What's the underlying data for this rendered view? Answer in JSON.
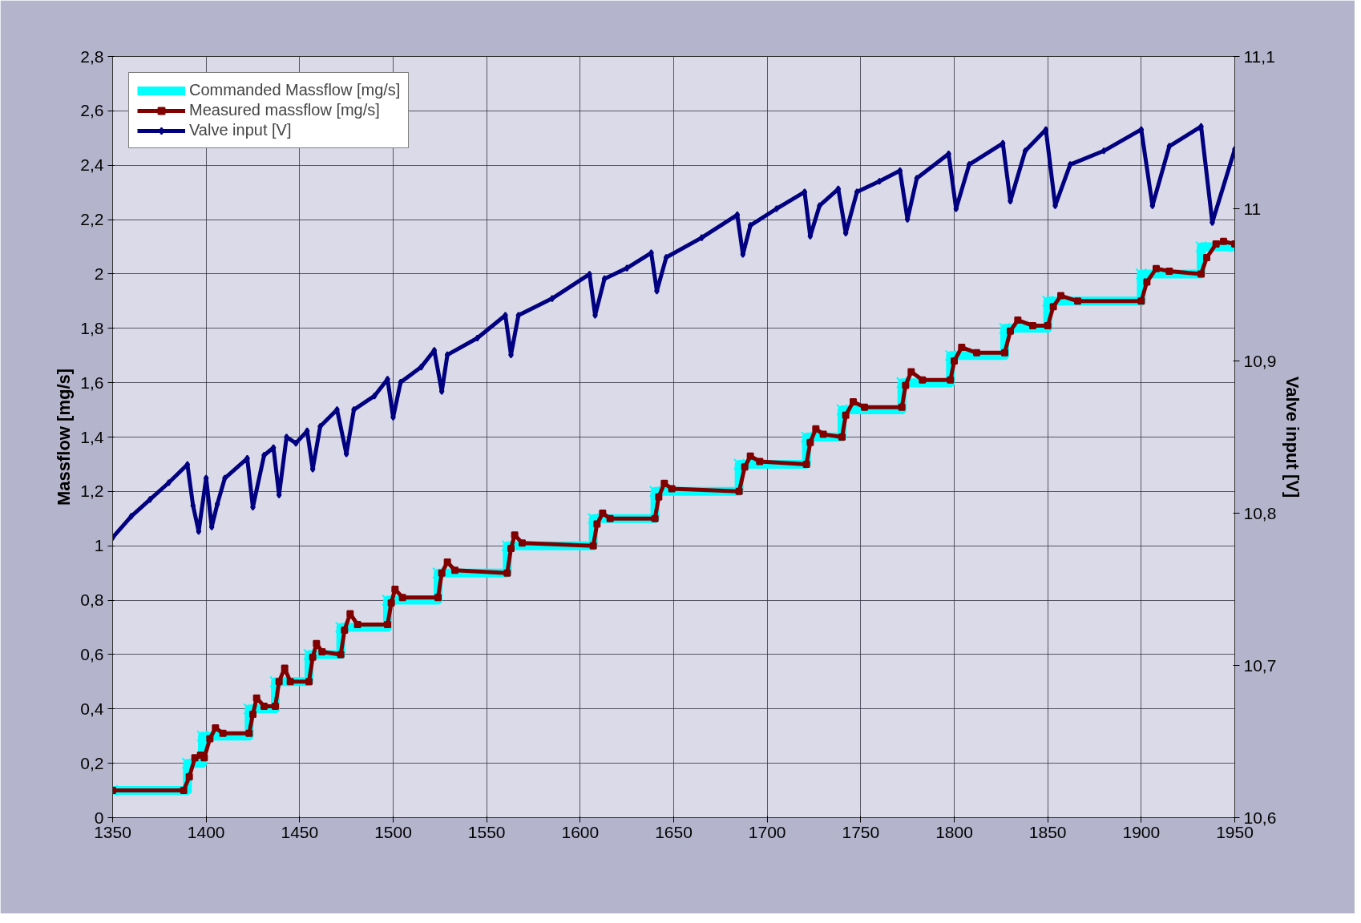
{
  "chart_data": {
    "type": "line",
    "xlabel": null,
    "ylabel": "Massflow [mg/s]",
    "y2label": "Valve input [V]",
    "xlim": [
      1350,
      1950
    ],
    "xticks": [
      1350,
      1400,
      1450,
      1500,
      1550,
      1600,
      1650,
      1700,
      1750,
      1800,
      1850,
      1900,
      1950
    ],
    "ylim": [
      0,
      2.8
    ],
    "yticks": [
      0,
      {
        "value": 0.2,
        "label": "0,2"
      },
      {
        "value": 0.4,
        "label": "0,4"
      },
      {
        "value": 0.6,
        "label": "0,6"
      },
      {
        "value": 0.8,
        "label": "0,8"
      },
      1,
      {
        "value": 1.2,
        "label": "1,2"
      },
      {
        "value": 1.4,
        "label": "1,4"
      },
      {
        "value": 1.6,
        "label": "1,6"
      },
      {
        "value": 1.8,
        "label": "1,8"
      },
      2,
      {
        "value": 2.2,
        "label": "2,2"
      },
      {
        "value": 2.4,
        "label": "2,4"
      },
      {
        "value": 2.6,
        "label": "2,6"
      },
      {
        "value": 2.8,
        "label": "2,8"
      }
    ],
    "y2lim": [
      10.6,
      11.1
    ],
    "y2ticks": [
      {
        "value": 10.6,
        "label": "10,6"
      },
      {
        "value": 10.7,
        "label": "10,7"
      },
      {
        "value": 10.8,
        "label": "10,8"
      },
      {
        "value": 10.9,
        "label": "10,9"
      },
      11,
      {
        "value": 11.1,
        "label": "11,1"
      }
    ],
    "grid": true,
    "legend": "top left",
    "series": [
      {
        "name": "Commanded Massflow [mg/s]",
        "type": "step",
        "color": "#00ffff",
        "marker": "cross",
        "x": [
          1350,
          1390,
          1398,
          1423,
          1437,
          1455,
          1472,
          1497,
          1524,
          1561,
          1607,
          1640,
          1685,
          1721,
          1740,
          1772,
          1798,
          1827,
          1850,
          1900,
          1932,
          1950
        ],
        "values": [
          0.1,
          0.2,
          0.3,
          0.4,
          0.5,
          0.6,
          0.7,
          0.8,
          0.9,
          1.0,
          1.1,
          1.2,
          1.3,
          1.4,
          1.5,
          1.6,
          1.7,
          1.8,
          1.9,
          2.0,
          2.1,
          2.1
        ]
      },
      {
        "name": "Measured massflow [mg/s]",
        "color": "#800000",
        "marker": "square",
        "x": [
          1350,
          1388,
          1391,
          1394,
          1397,
          1399,
          1402,
          1405,
          1409,
          1423,
          1425,
          1427,
          1431,
          1437,
          1439,
          1442,
          1445,
          1455,
          1457,
          1459,
          1462,
          1472,
          1474,
          1477,
          1481,
          1497,
          1499,
          1501,
          1505,
          1524,
          1526,
          1529,
          1533,
          1561,
          1563,
          1565,
          1569,
          1607,
          1609,
          1612,
          1616,
          1640,
          1642,
          1645,
          1649,
          1685,
          1688,
          1691,
          1696,
          1721,
          1723,
          1726,
          1730,
          1740,
          1742,
          1746,
          1752,
          1772,
          1774,
          1777,
          1783,
          1798,
          1800,
          1804,
          1812,
          1827,
          1830,
          1834,
          1842,
          1850,
          1853,
          1857,
          1866,
          1900,
          1903,
          1908,
          1915,
          1932,
          1935,
          1940,
          1944,
          1950
        ],
        "values": [
          0.1,
          0.1,
          0.15,
          0.22,
          0.23,
          0.22,
          0.29,
          0.33,
          0.31,
          0.31,
          0.38,
          0.44,
          0.41,
          0.41,
          0.5,
          0.55,
          0.5,
          0.5,
          0.59,
          0.64,
          0.61,
          0.6,
          0.69,
          0.75,
          0.71,
          0.71,
          0.79,
          0.84,
          0.81,
          0.81,
          0.9,
          0.94,
          0.91,
          0.9,
          0.99,
          1.04,
          1.01,
          1.0,
          1.08,
          1.12,
          1.1,
          1.1,
          1.18,
          1.23,
          1.21,
          1.2,
          1.29,
          1.33,
          1.31,
          1.3,
          1.38,
          1.43,
          1.41,
          1.4,
          1.48,
          1.53,
          1.51,
          1.51,
          1.59,
          1.64,
          1.61,
          1.61,
          1.68,
          1.73,
          1.71,
          1.71,
          1.79,
          1.83,
          1.81,
          1.81,
          1.88,
          1.92,
          1.9,
          1.9,
          1.97,
          2.02,
          2.01,
          2.0,
          2.06,
          2.11,
          2.12,
          2.11
        ]
      },
      {
        "name": "Valve input [V]",
        "color": "#000080",
        "marker": "diamond",
        "axis": "y2",
        "x": [
          1350,
          1360,
          1370,
          1380,
          1390,
          1393,
          1396,
          1400,
          1403,
          1406,
          1410,
          1422,
          1425,
          1431,
          1436,
          1439,
          1443,
          1448,
          1454,
          1457,
          1461,
          1470,
          1475,
          1479,
          1490,
          1497,
          1500,
          1504,
          1515,
          1522,
          1526,
          1529,
          1545,
          1560,
          1563,
          1567,
          1585,
          1605,
          1608,
          1613,
          1625,
          1638,
          1641,
          1646,
          1665,
          1684,
          1687,
          1691,
          1705,
          1720,
          1723,
          1728,
          1738,
          1742,
          1748,
          1760,
          1771,
          1775,
          1780,
          1797,
          1801,
          1808,
          1826,
          1830,
          1838,
          1849,
          1854,
          1862,
          1880,
          1900,
          1906,
          1915,
          1932,
          1938,
          1950
        ],
        "values": [
          10.784,
          10.798,
          10.809,
          10.82,
          10.832,
          10.805,
          10.788,
          10.823,
          10.791,
          10.806,
          10.823,
          10.836,
          10.804,
          10.838,
          10.843,
          10.812,
          10.85,
          10.846,
          10.854,
          10.829,
          10.857,
          10.868,
          10.839,
          10.868,
          10.877,
          10.888,
          10.863,
          10.886,
          10.896,
          10.907,
          10.88,
          10.904,
          10.915,
          10.93,
          10.904,
          10.93,
          10.941,
          10.957,
          10.93,
          10.954,
          10.961,
          10.971,
          10.946,
          10.968,
          10.981,
          10.996,
          10.97,
          10.989,
          11.0,
          11.011,
          10.982,
          11.002,
          11.013,
          10.984,
          11.011,
          11.018,
          11.025,
          10.993,
          11.02,
          11.036,
          11.0,
          11.029,
          11.043,
          11.005,
          11.038,
          11.052,
          11.002,
          11.029,
          11.038,
          11.052,
          11.002,
          11.041,
          11.054,
          10.991,
          11.039
        ]
      }
    ]
  }
}
